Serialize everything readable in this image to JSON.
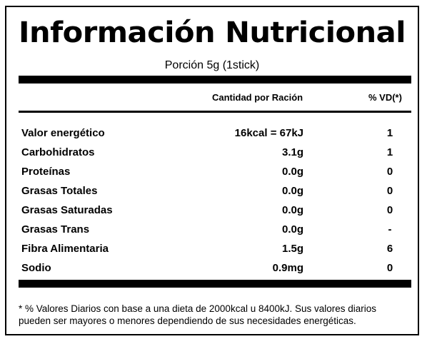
{
  "title": "Información Nutricional",
  "serving": "Porción 5g (1stick)",
  "columns": {
    "amount": "Cantidad por Ración",
    "dv": "% VD(*)"
  },
  "rows": [
    {
      "name": "Valor energético",
      "amount": "16kcal = 67kJ",
      "dv": "1"
    },
    {
      "name": "Carbohidratos",
      "amount": "3.1g",
      "dv": "1"
    },
    {
      "name": "Proteínas",
      "amount": "0.0g",
      "dv": "0"
    },
    {
      "name": "Grasas Totales",
      "amount": "0.0g",
      "dv": "0"
    },
    {
      "name": "Grasas Saturadas",
      "amount": "0.0g",
      "dv": "0"
    },
    {
      "name": "Grasas Trans",
      "amount": "0.0g",
      "dv": "-"
    },
    {
      "name": "Fibra Alimentaria",
      "amount": "1.5g",
      "dv": "6"
    },
    {
      "name": "Sodio",
      "amount": "0.9mg",
      "dv": "0"
    }
  ],
  "footnote": {
    "line1": "* % Valores Diarios con base a una dieta de 2000kcal u 8400kJ. Sus valores diarios",
    "line2": "pueden ser mayores o menores dependiendo de sus necesidades energéticas."
  }
}
